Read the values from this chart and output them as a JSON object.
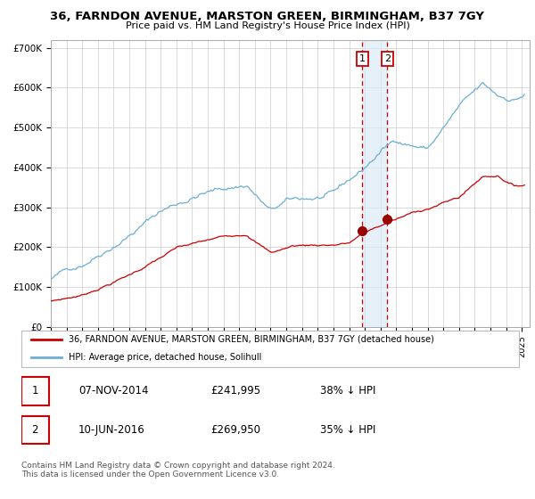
{
  "title": "36, FARNDON AVENUE, MARSTON GREEN, BIRMINGHAM, B37 7GY",
  "subtitle": "Price paid vs. HM Land Registry's House Price Index (HPI)",
  "legend_line1": "36, FARNDON AVENUE, MARSTON GREEN, BIRMINGHAM, B37 7GY (detached house)",
  "legend_line2": "HPI: Average price, detached house, Solihull",
  "transaction1_date": "07-NOV-2014",
  "transaction1_price": 241995,
  "transaction1_pct": "38% ↓ HPI",
  "transaction2_date": "10-JUN-2016",
  "transaction2_price": 269950,
  "transaction2_pct": "35% ↓ HPI",
  "footer": "Contains HM Land Registry data © Crown copyright and database right 2024.\nThis data is licensed under the Open Government Licence v3.0.",
  "hpi_color": "#6baed6",
  "price_color": "#cc0000",
  "marker_color": "#990000",
  "vline_color": "#cc0000",
  "shade_color": "#daeaf7",
  "background_color": "#ffffff",
  "grid_color": "#cccccc",
  "transaction1_x": 2014.85,
  "transaction2_x": 2016.44,
  "ylim": [
    0,
    720000
  ],
  "xlim_start": 1995,
  "xlim_end": 2025.5
}
